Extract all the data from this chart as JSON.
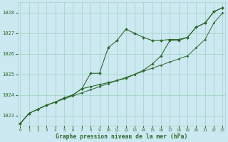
{
  "xlabel": "Graphe pression niveau de la mer (hPa)",
  "bg_color": "#cce8f0",
  "grid_color": "#a8d4cc",
  "line_color": "#2d6a2d",
  "x": [
    0,
    1,
    2,
    3,
    4,
    5,
    6,
    7,
    8,
    9,
    10,
    11,
    12,
    13,
    14,
    15,
    16,
    17,
    18,
    19,
    20,
    21,
    22,
    23
  ],
  "series_straight": [
    1022.6,
    1023.1,
    1023.3,
    1023.5,
    1023.65,
    1023.8,
    1023.95,
    1024.1,
    1024.25,
    1024.4,
    1024.55,
    1024.7,
    1024.85,
    1025.0,
    1025.15,
    1025.3,
    1025.45,
    1025.6,
    1025.75,
    1025.9,
    1026.3,
    1026.7,
    1027.5,
    1028.0
  ],
  "series_wavy": [
    1022.6,
    1023.1,
    1023.3,
    1023.5,
    1023.65,
    1023.85,
    1024.0,
    1024.3,
    1025.05,
    1025.05,
    1026.3,
    1026.65,
    1027.2,
    1027.0,
    1026.8,
    1026.65,
    1026.65,
    1026.7,
    1026.7,
    1026.8,
    1027.3,
    1027.5,
    1028.05,
    1028.25
  ],
  "series_mid": [
    1022.6,
    1023.1,
    1023.3,
    1023.5,
    1023.65,
    1023.85,
    1024.0,
    1024.3,
    1024.4,
    1024.5,
    1024.6,
    1024.7,
    1024.8,
    1025.0,
    1025.2,
    1025.5,
    1025.9,
    1026.65,
    1026.65,
    1026.8,
    1027.3,
    1027.5,
    1028.05,
    1028.25
  ],
  "ylim": [
    1022.5,
    1028.5
  ],
  "xlim": [
    -0.3,
    23.3
  ],
  "yticks": [
    1023,
    1024,
    1025,
    1026,
    1027,
    1028
  ],
  "xticks": [
    0,
    1,
    2,
    3,
    4,
    5,
    6,
    7,
    8,
    9,
    10,
    11,
    12,
    13,
    14,
    15,
    16,
    17,
    18,
    19,
    20,
    21,
    22,
    23
  ]
}
